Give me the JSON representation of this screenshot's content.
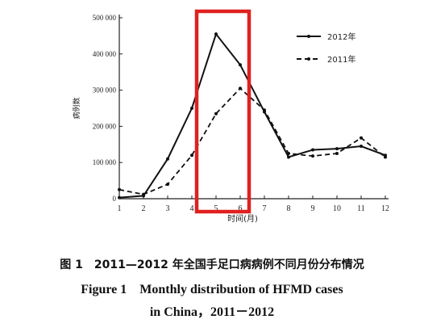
{
  "chart_data": {
    "type": "line",
    "ylabel": "病例数",
    "xlabel": "时间(月)",
    "x": [
      1,
      2,
      3,
      4,
      5,
      6,
      7,
      8,
      9,
      10,
      11,
      12
    ],
    "x_tick_labels": [
      "1",
      "2",
      "3",
      "4",
      "5",
      "6",
      "7",
      "8",
      "9",
      "10",
      "11",
      "12"
    ],
    "y_tick_labels": [
      "0",
      "100 000",
      "200 000",
      "300 000",
      "400 000",
      "500 000"
    ],
    "ylim": [
      0,
      500000
    ],
    "xlim": [
      1,
      12
    ],
    "grid": false,
    "legend_position": "top-right",
    "series": [
      {
        "name": "2012年",
        "style": "solid",
        "values": [
          3000,
          8000,
          110000,
          250000,
          455000,
          370000,
          240000,
          115000,
          135000,
          138000,
          145000,
          120000
        ]
      },
      {
        "name": "2011年",
        "style": "dashed",
        "values": [
          25000,
          12000,
          40000,
          120000,
          235000,
          305000,
          245000,
          125000,
          118000,
          125000,
          168000,
          115000
        ]
      }
    ],
    "highlight": {
      "x_range": [
        5,
        6
      ],
      "color": "#e02020"
    },
    "colors": {
      "line": "#111111",
      "highlight": "#e02020"
    }
  },
  "caption": {
    "cn": "图 1　2011—2012 年全国手足口病病例不同月份分布情况",
    "en_line1": "Figure 1　Monthly distribution of HFMD cases",
    "en_line2": "in China，2011－2012"
  }
}
